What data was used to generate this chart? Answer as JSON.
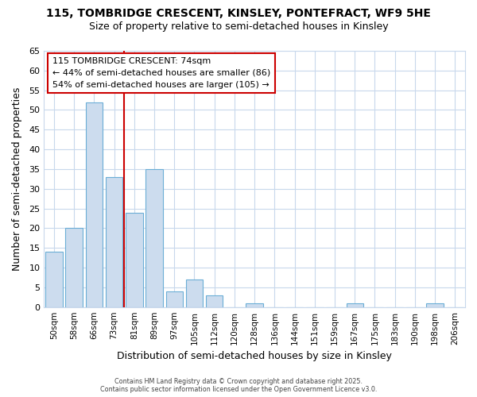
{
  "title_line1": "115, TOMBRIDGE CRESCENT, KINSLEY, PONTEFRACT, WF9 5HE",
  "title_line2": "Size of property relative to semi-detached houses in Kinsley",
  "xlabel": "Distribution of semi-detached houses by size in Kinsley",
  "ylabel": "Number of semi-detached properties",
  "categories": [
    "50sqm",
    "58sqm",
    "66sqm",
    "73sqm",
    "81sqm",
    "89sqm",
    "97sqm",
    "105sqm",
    "112sqm",
    "120sqm",
    "128sqm",
    "136sqm",
    "144sqm",
    "151sqm",
    "159sqm",
    "167sqm",
    "175sqm",
    "183sqm",
    "190sqm",
    "198sqm",
    "206sqm"
  ],
  "values": [
    14,
    20,
    52,
    33,
    24,
    35,
    4,
    7,
    3,
    0,
    1,
    0,
    0,
    0,
    0,
    1,
    0,
    0,
    0,
    1,
    0
  ],
  "bar_color": "#ccdcee",
  "bar_edge_color": "#6baed6",
  "red_line_index": 3,
  "annotation_title": "115 TOMBRIDGE CRESCENT: 74sqm",
  "annotation_line1": "← 44% of semi-detached houses are smaller (86)",
  "annotation_line2": "54% of semi-detached houses are larger (105) →",
  "annotation_box_color": "#ffffff",
  "annotation_border_color": "#cc0000",
  "red_line_color": "#cc0000",
  "ylim": [
    0,
    65
  ],
  "yticks": [
    0,
    5,
    10,
    15,
    20,
    25,
    30,
    35,
    40,
    45,
    50,
    55,
    60,
    65
  ],
  "background_color": "#ffffff",
  "grid_color": "#c8d8ec",
  "footer_line1": "Contains HM Land Registry data © Crown copyright and database right 2025.",
  "footer_line2": "Contains public sector information licensed under the Open Government Licence v3.0."
}
